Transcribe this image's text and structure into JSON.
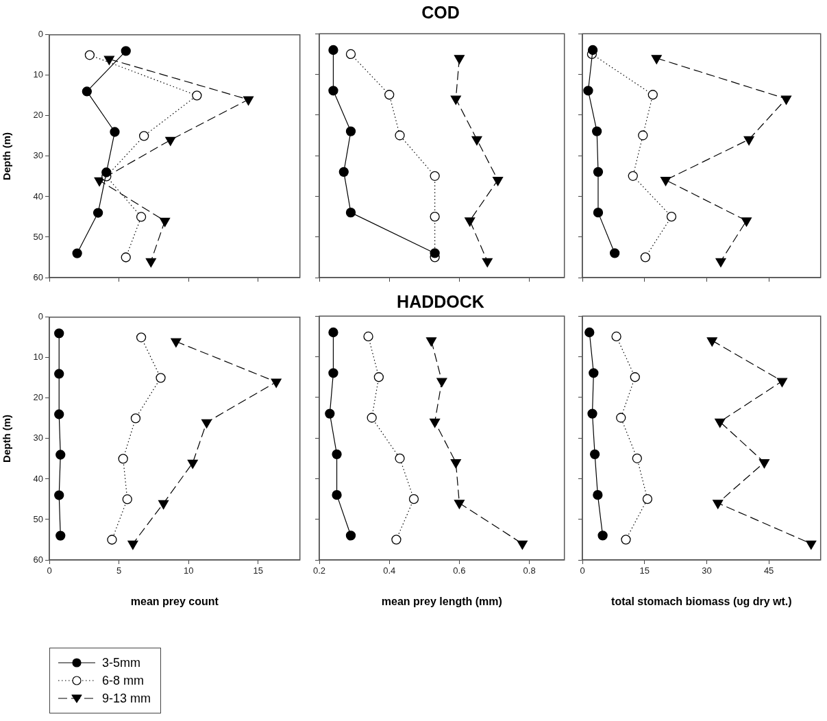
{
  "chart_data": [
    {
      "type": "line",
      "ylabel": "Depth (m)",
      "xlim": [
        0,
        18
      ],
      "xticks": [
        0,
        5,
        10,
        15
      ],
      "ylim": [
        60,
        0
      ],
      "yticks": [
        0,
        10,
        20,
        30,
        40,
        50,
        60
      ],
      "tick_labels": "y",
      "series": [
        {
          "color": "#000000",
          "marker": "circle",
          "line_style": "solid",
          "x": [
            5.5,
            2.7,
            4.7,
            4.1,
            3.5,
            2.0
          ],
          "values": [
            4,
            14,
            24,
            34,
            44,
            54
          ]
        },
        {
          "color": "#000000",
          "marker": "circle",
          "line_style": "dotted",
          "x": [
            2.9,
            10.6,
            6.8,
            4.1,
            6.6,
            5.5
          ],
          "values": [
            5,
            15,
            25,
            35,
            45,
            55
          ]
        },
        {
          "color": "#000000",
          "marker": "triangle",
          "line_style": "dashed",
          "x": [
            4.3,
            14.3,
            8.7,
            3.6,
            8.3,
            7.3
          ],
          "values": [
            6,
            16,
            26,
            36,
            46,
            56
          ]
        }
      ]
    },
    {
      "type": "line",
      "title": "COD",
      "xlim": [
        0.2,
        0.9
      ],
      "xticks": [
        0.2,
        0.4,
        0.6,
        0.8
      ],
      "ylim": [
        60,
        0
      ],
      "yticks": [
        0,
        10,
        20,
        30,
        40,
        50,
        60
      ],
      "tick_labels": false,
      "series": [
        {
          "color": "#000000",
          "marker": "circle",
          "line_style": "solid",
          "x": [
            0.24,
            0.24,
            0.29,
            0.27,
            0.29,
            0.53
          ],
          "values": [
            4,
            14,
            24,
            34,
            44,
            54
          ]
        },
        {
          "color": "#000000",
          "marker": "circle",
          "line_style": "dotted",
          "x": [
            0.29,
            0.4,
            0.43,
            0.53,
            0.53,
            0.53
          ],
          "values": [
            5,
            15,
            25,
            35,
            45,
            55
          ]
        },
        {
          "color": "#000000",
          "marker": "triangle",
          "line_style": "dashed",
          "x": [
            0.6,
            0.59,
            0.65,
            0.71,
            0.63,
            0.68
          ],
          "values": [
            6,
            16,
            26,
            36,
            46,
            56
          ]
        }
      ]
    },
    {
      "type": "line",
      "xlim": [
        0,
        57.5
      ],
      "xticks": [
        0,
        15,
        30,
        45
      ],
      "ylim": [
        60,
        0
      ],
      "yticks": [
        0,
        10,
        20,
        30,
        40,
        50,
        60
      ],
      "tick_labels": false,
      "series": [
        {
          "color": "#000000",
          "marker": "circle",
          "line_style": "solid",
          "x": [
            2.5,
            1.4,
            3.5,
            3.8,
            3.8,
            7.8
          ],
          "values": [
            4,
            14,
            24,
            34,
            44,
            54
          ]
        },
        {
          "color": "#000000",
          "marker": "circle",
          "line_style": "dotted",
          "x": [
            2.3,
            17.0,
            14.6,
            12.2,
            21.5,
            15.2
          ],
          "values": [
            5,
            15,
            25,
            35,
            45,
            55
          ]
        },
        {
          "color": "#000000",
          "marker": "triangle",
          "line_style": "dashed",
          "x": [
            17.9,
            49.2,
            40.2,
            20.1,
            39.6,
            33.4
          ],
          "values": [
            6,
            16,
            26,
            36,
            46,
            56
          ]
        }
      ]
    },
    {
      "type": "line",
      "xlabel": "mean prey count",
      "ylabel": "Depth (m)",
      "xlim": [
        0,
        18
      ],
      "xticks": [
        0,
        5,
        10,
        15
      ],
      "ylim": [
        60,
        0
      ],
      "yticks": [
        0,
        10,
        20,
        30,
        40,
        50,
        60
      ],
      "legend": "bottom left",
      "series": [
        {
          "name": "3-5mm",
          "color": "#000000",
          "marker": "circle",
          "line_style": "solid",
          "x": [
            0.7,
            0.7,
            0.7,
            0.8,
            0.7,
            0.8
          ],
          "values": [
            4,
            14,
            24,
            34,
            44,
            54
          ]
        },
        {
          "name": "6-8 mm",
          "color": "#000000",
          "marker": "circle",
          "line_style": "dotted",
          "x": [
            6.6,
            8.0,
            6.2,
            5.3,
            5.6,
            4.5
          ],
          "values": [
            5,
            15,
            25,
            35,
            45,
            55
          ]
        },
        {
          "name": "9-13 mm",
          "color": "#000000",
          "marker": "triangle",
          "line_style": "dashed",
          "x": [
            9.1,
            16.3,
            11.3,
            10.3,
            8.2,
            6.0
          ],
          "values": [
            6,
            16,
            26,
            36,
            46,
            56
          ]
        }
      ]
    },
    {
      "type": "line",
      "title": "HADDOCK",
      "xlabel": "mean prey length (mm)",
      "xlim": [
        0.2,
        0.9
      ],
      "xticks": [
        0.2,
        0.4,
        0.6,
        0.8
      ],
      "ylim": [
        60,
        0
      ],
      "yticks": [
        0,
        10,
        20,
        30,
        40,
        50,
        60
      ],
      "tick_labels": "x",
      "series": [
        {
          "color": "#000000",
          "marker": "circle",
          "line_style": "solid",
          "x": [
            0.24,
            0.24,
            0.23,
            0.25,
            0.25,
            0.29
          ],
          "values": [
            4,
            14,
            24,
            34,
            44,
            54
          ]
        },
        {
          "color": "#000000",
          "marker": "circle",
          "line_style": "dotted",
          "x": [
            0.34,
            0.37,
            0.35,
            0.43,
            0.47,
            0.42
          ],
          "values": [
            5,
            15,
            25,
            35,
            45,
            55
          ]
        },
        {
          "color": "#000000",
          "marker": "triangle",
          "line_style": "dashed",
          "x": [
            0.52,
            0.55,
            0.53,
            0.59,
            0.6,
            0.78
          ],
          "values": [
            6,
            16,
            26,
            36,
            46,
            56
          ]
        }
      ]
    },
    {
      "type": "line",
      "xlabel": "total stomach biomass (υg dry wt.)",
      "xlim": [
        0,
        57.5
      ],
      "xticks": [
        0,
        15,
        30,
        45
      ],
      "ylim": [
        60,
        0
      ],
      "yticks": [
        0,
        10,
        20,
        30,
        40,
        50,
        60
      ],
      "tick_labels": "x",
      "series": [
        {
          "color": "#000000",
          "marker": "circle",
          "line_style": "solid",
          "x": [
            1.7,
            2.7,
            2.4,
            3.0,
            3.7,
            4.9
          ],
          "values": [
            4,
            14,
            24,
            34,
            44,
            54
          ]
        },
        {
          "color": "#000000",
          "marker": "circle",
          "line_style": "dotted",
          "x": [
            8.2,
            12.7,
            9.3,
            13.2,
            15.7,
            10.5
          ],
          "values": [
            5,
            15,
            25,
            35,
            45,
            55
          ]
        },
        {
          "color": "#000000",
          "marker": "triangle",
          "line_style": "dashed",
          "x": [
            31.3,
            48.2,
            33.2,
            43.9,
            32.7,
            55.2
          ],
          "values": [
            6,
            16,
            26,
            36,
            46,
            56
          ]
        }
      ]
    }
  ]
}
